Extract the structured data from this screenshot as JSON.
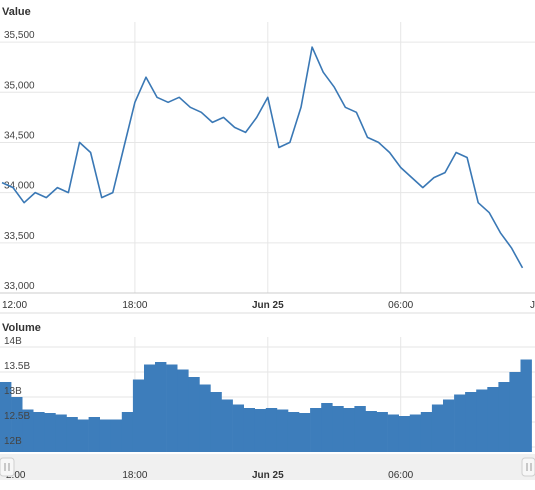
{
  "price_panel": {
    "title": "Value"
  },
  "volume_panel": {
    "title": "Volume"
  },
  "footer": {
    "credit": ""
  },
  "colors": {
    "series": "#3a78b5",
    "volume_bar": "#3d7dbb",
    "grid": "#e6e6e6",
    "scrollbar": "#f0f0f0",
    "scroll_handle": "#f7f7f7"
  },
  "chart_data": [
    {
      "type": "line",
      "title": "Value",
      "x_tick_labels": [
        "12:00",
        "18:00",
        "Jun 25",
        "06:00",
        "J"
      ],
      "ylim": [
        33000,
        35700
      ],
      "y_ticks": [
        33000,
        33500,
        34000,
        34500,
        35000,
        35500
      ],
      "y_tick_labels": [
        "33,000",
        "33,500",
        "34,000",
        "34,500",
        "35,000",
        "35,500"
      ],
      "x_hours": [
        0,
        0.5,
        1,
        1.5,
        2,
        2.5,
        3,
        3.5,
        4,
        4.5,
        5,
        5.5,
        6,
        6.5,
        7,
        7.5,
        8,
        8.5,
        9,
        9.5,
        10,
        10.5,
        11,
        11.5,
        12,
        12.5,
        13,
        13.5,
        14,
        14.5,
        15,
        15.5,
        16,
        16.5,
        17,
        17.5,
        18,
        18.5,
        19,
        19.5,
        20,
        20.5,
        21,
        21.5,
        22,
        22.5,
        23,
        23.5
      ],
      "series": [
        {
          "values": [
            34100,
            34050,
            33900,
            34000,
            33950,
            34050,
            34000,
            34500,
            34400,
            33950,
            34000,
            34450,
            34900,
            35150,
            34950,
            34900,
            34950,
            34850,
            34800,
            34700,
            34750,
            34650,
            34600,
            34750,
            34950,
            34450,
            34500,
            34850,
            35450,
            35200,
            35050,
            34850,
            34800,
            34550,
            34500,
            34400,
            34250,
            34150,
            34050,
            34150,
            34200,
            34400,
            34350,
            33900,
            33800,
            33600,
            33450,
            33250
          ]
        }
      ]
    },
    {
      "type": "bar",
      "title": "Volume",
      "x_tick_labels": [
        "2:00",
        "18:00",
        "Jun 25",
        "06:00"
      ],
      "ylim": [
        11900000000,
        14200000000
      ],
      "y_ticks": [
        12000000000,
        12500000000,
        13000000000,
        13500000000,
        14000000000
      ],
      "y_tick_labels": [
        "12B",
        "12.5B",
        "13B",
        "13.5B",
        "14B"
      ],
      "x_hours": [
        0,
        0.5,
        1,
        1.5,
        2,
        2.5,
        3,
        3.5,
        4,
        4.5,
        5,
        5.5,
        6,
        6.5,
        7,
        7.5,
        8,
        8.5,
        9,
        9.5,
        10,
        10.5,
        11,
        11.5,
        12,
        12.5,
        13,
        13.5,
        14,
        14.5,
        15,
        15.5,
        16,
        16.5,
        17,
        17.5,
        18,
        18.5,
        19,
        19.5,
        20,
        20.5,
        21,
        21.5,
        22,
        22.5,
        23,
        23.5
      ],
      "series": [
        {
          "values": [
            13300000000,
            13000000000,
            12750000000,
            12700000000,
            12680000000,
            12650000000,
            12600000000,
            12550000000,
            12600000000,
            12550000000,
            12550000000,
            12700000000,
            13350000000,
            13650000000,
            13700000000,
            13650000000,
            13550000000,
            13400000000,
            13250000000,
            13100000000,
            12950000000,
            12850000000,
            12780000000,
            12760000000,
            12780000000,
            12750000000,
            12700000000,
            12680000000,
            12780000000,
            12880000000,
            12820000000,
            12780000000,
            12820000000,
            12720000000,
            12700000000,
            12650000000,
            12620000000,
            12650000000,
            12700000000,
            12850000000,
            12950000000,
            13050000000,
            13100000000,
            13150000000,
            13200000000,
            13300000000,
            13500000000,
            13750000000
          ]
        }
      ]
    }
  ]
}
